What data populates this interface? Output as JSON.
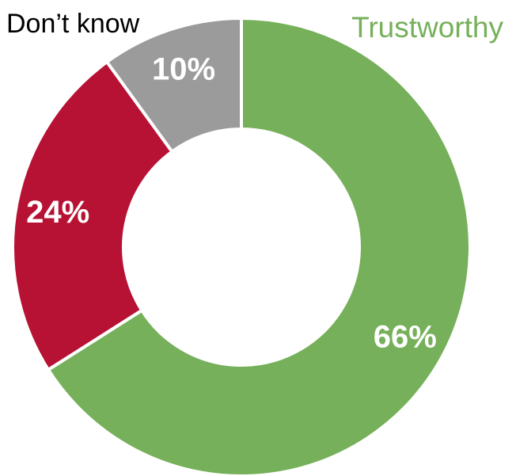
{
  "chart_data": {
    "type": "pie",
    "categories": [
      "Trustworthy",
      "",
      "Don’t know"
    ],
    "values": [
      66,
      24,
      10
    ],
    "data_labels": [
      "66%",
      "24%",
      "10%"
    ],
    "colors": [
      "#76b05a",
      "#b71234",
      "#9b9b9b"
    ],
    "donut": true,
    "legend": "none",
    "annotations": [
      {
        "text": "Don’t know",
        "color": "#000000"
      },
      {
        "text": "Trustworthy",
        "color": "#76b05a"
      }
    ]
  }
}
